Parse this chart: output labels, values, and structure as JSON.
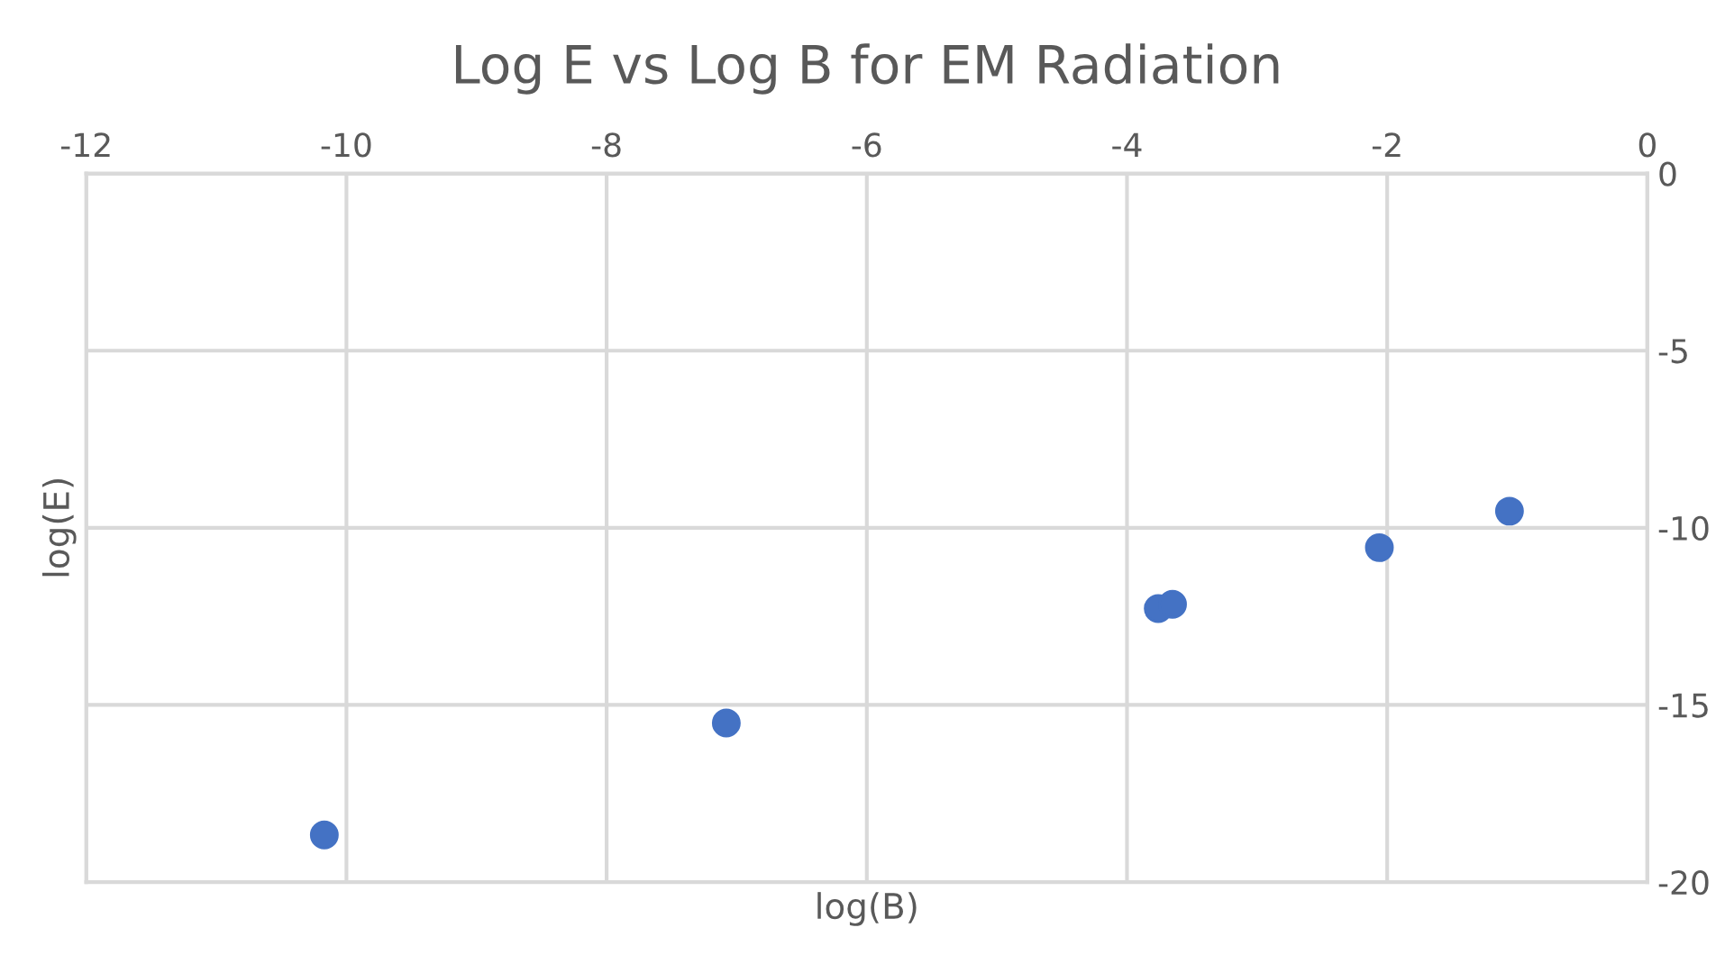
{
  "chart_data": {
    "type": "scatter",
    "title": "Log E vs Log B for EM Radiation",
    "xlabel": "log(B)",
    "ylabel": "log(E)",
    "x": [
      -10.17,
      -7.08,
      -3.76,
      -3.65,
      -2.06,
      -1.06
    ],
    "series": [
      {
        "color": "#4472c4",
        "values": [
          -18.67,
          -15.51,
          -12.28,
          -12.16,
          -10.56,
          -9.53
        ]
      }
    ],
    "xlim": [
      -12,
      0
    ],
    "xticks": [
      -12,
      -10,
      -8,
      -6,
      -4,
      -2,
      0
    ],
    "ylim": [
      -20,
      0
    ],
    "yticks": [
      -20,
      -15,
      -10,
      -5,
      0
    ],
    "grid": true,
    "marker": "circle",
    "legend": false
  }
}
